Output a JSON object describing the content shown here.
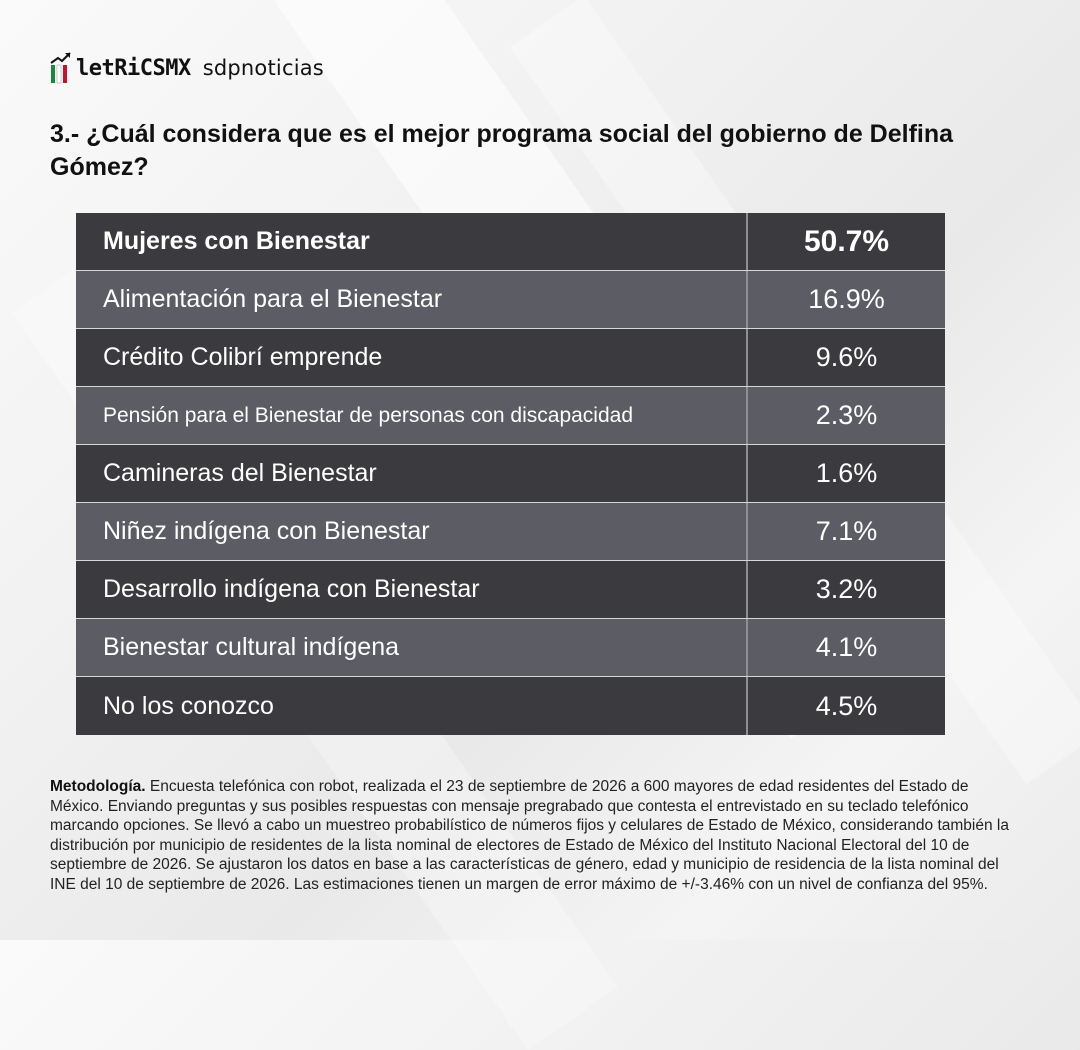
{
  "brand": {
    "logo_text": "letRiCSMX",
    "partner": "sdpnoticias"
  },
  "question": "3.- ¿Cuál considera que es el mejor programa social del gobierno de Delfina Gómez?",
  "colors": {
    "row_dark": "#3b3b3f",
    "row_light": "#5b5c64",
    "logo_green": "#1a8a3a",
    "logo_red": "#c8102e"
  },
  "chart_data": {
    "type": "table",
    "title": "3.- ¿Cuál considera que es el mejor programa social del gobierno de Delfina Gómez?",
    "rows": [
      {
        "label": "Mujeres con Bienestar",
        "value": "50.7%"
      },
      {
        "label": "Alimentación para el Bienestar",
        "value": "16.9%"
      },
      {
        "label": "Crédito Colibrí emprende",
        "value": "9.6%"
      },
      {
        "label": "Pensión para el Bienestar de personas con discapacidad",
        "value": "2.3%"
      },
      {
        "label": "Camineras del Bienestar",
        "value": "1.6%"
      },
      {
        "label": "Niñez indígena con Bienestar",
        "value": "7.1%"
      },
      {
        "label": "Desarrollo indígena con Bienestar",
        "value": "3.2%"
      },
      {
        "label": "Bienestar cultural indígena",
        "value": "4.1%"
      },
      {
        "label": "No los conozco",
        "value": "4.5%"
      }
    ]
  },
  "methodology": {
    "label": "Metodología.",
    "text": " Encuesta telefónica con robot, realizada el 23 de septiembre de 2026 a 600 mayores de edad residentes del Estado de México. Enviando preguntas y sus posibles respuestas con mensaje pregrabado que contesta el entrevistado en su teclado telefónico marcando opciones. Se llevó a cabo un muestreo probabilístico de números fijos y celulares de Estado de México, considerando también la distribución por municipio de residentes de la lista nominal de electores de Estado de México del Instituto Nacional Electoral del 10 de septiembre de 2026. Se ajustaron los datos en base a las características de género, edad y municipio de residencia de la lista nominal del INE del 10 de septiembre de 2026. Las estimaciones tienen un margen de error máximo de +/-3.46% con un nivel de confianza del 95%."
  }
}
